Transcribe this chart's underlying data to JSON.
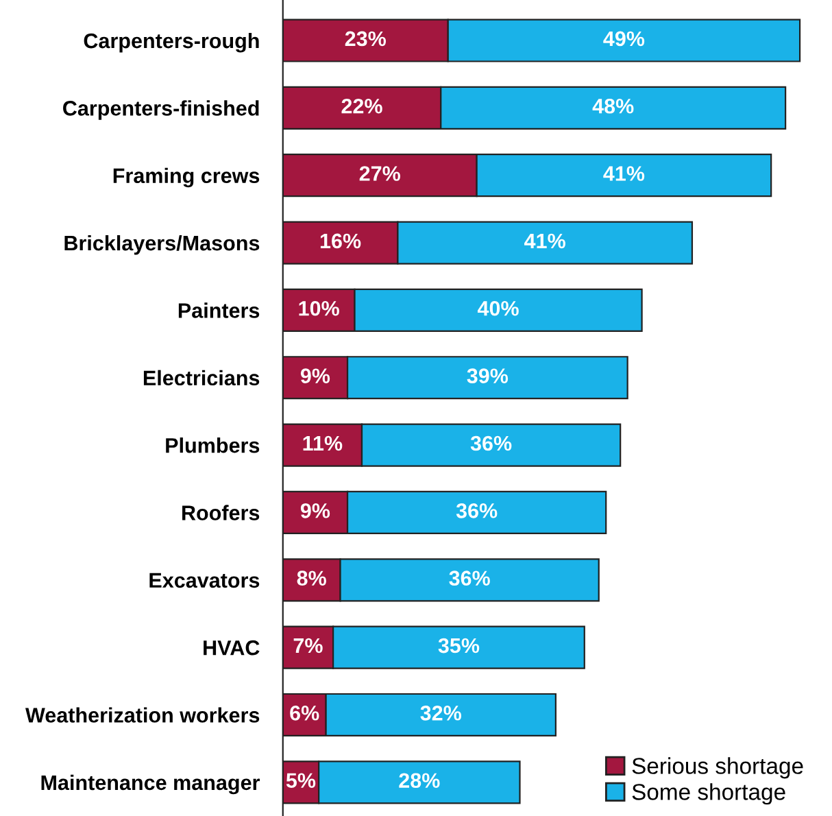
{
  "chart_data": {
    "type": "bar",
    "orientation": "horizontal",
    "stacked": true,
    "legend": "bottom right",
    "categories": [
      "Carpenters-rough",
      "Carpenters-finished",
      "Framing crews",
      "Bricklayers/Masons",
      "Painters",
      "Electricians",
      "Plumbers",
      "Roofers",
      "Excavators",
      "HVAC",
      "Weatherization workers",
      "Maintenance manager"
    ],
    "series": [
      {
        "name": "Serious shortage",
        "color": "#a3173f",
        "values": [
          23,
          22,
          27,
          16,
          10,
          9,
          11,
          9,
          8,
          7,
          6,
          5
        ],
        "value_labels": [
          "23%",
          "22%",
          "27%",
          "16%",
          "10%",
          "9%",
          "11%",
          "9%",
          "8%",
          "7%",
          "6%",
          "5%"
        ]
      },
      {
        "name": "Some shortage",
        "color": "#1ab2e8",
        "values": [
          49,
          48,
          41,
          41,
          40,
          39,
          36,
          36,
          36,
          35,
          32,
          28
        ],
        "value_labels": [
          "49%",
          "48%",
          "41%",
          "41%",
          "40%",
          "39%",
          "36%",
          "36%",
          "36%",
          "35%",
          "32%",
          "28%"
        ]
      }
    ]
  }
}
